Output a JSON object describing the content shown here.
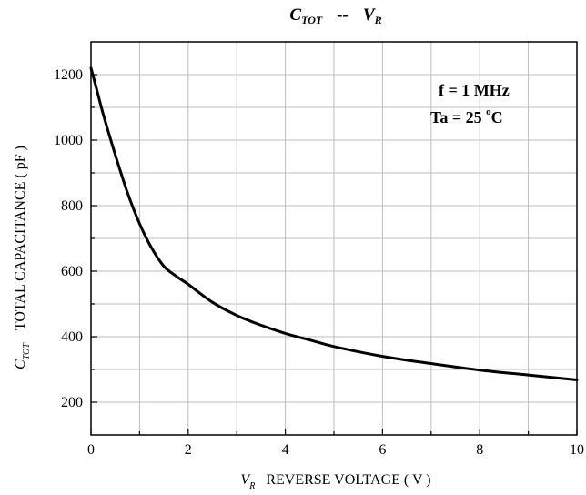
{
  "chart_data": {
    "type": "line",
    "title": {
      "main": "C",
      "main_sub": "TOT",
      "sep": "--",
      "second": "V",
      "second_sub": "R"
    },
    "xlabel": {
      "var": "V",
      "var_sub": "R",
      "text": "REVERSE  VOLTAGE  ( V )"
    },
    "ylabel": {
      "var": "C",
      "var_sub": "TOT",
      "text": "TOTAL  CAPACITANCE ( pF )"
    },
    "xlim": [
      0,
      10
    ],
    "ylim": [
      100,
      1300
    ],
    "xticks": [
      0,
      2,
      4,
      6,
      8,
      10
    ],
    "xtick_labels": [
      "0",
      "2",
      "4",
      "6",
      "8",
      "10"
    ],
    "yticks": [
      200,
      400,
      600,
      800,
      1000,
      1200
    ],
    "ytick_labels": [
      "200",
      "400",
      "600",
      "800",
      "1000",
      "1200"
    ],
    "grid": true,
    "annotation": {
      "line1": "f  =  1 MHz",
      "line2_pre": "Ta  =  25 ",
      "line2_sup": "o",
      "line2_post": "C",
      "placement": "top-right"
    },
    "series": [
      {
        "x": [
          0,
          0.1,
          0.25,
          0.5,
          0.75,
          1,
          1.25,
          1.5,
          1.75,
          2,
          2.5,
          3,
          3.5,
          4,
          4.5,
          5,
          6,
          7,
          8,
          9,
          10
        ],
        "values": [
          1220,
          1165,
          1080,
          955,
          840,
          745,
          670,
          615,
          585,
          560,
          505,
          465,
          435,
          410,
          390,
          370,
          340,
          318,
          298,
          283,
          268
        ]
      }
    ],
    "color": "#000000"
  }
}
